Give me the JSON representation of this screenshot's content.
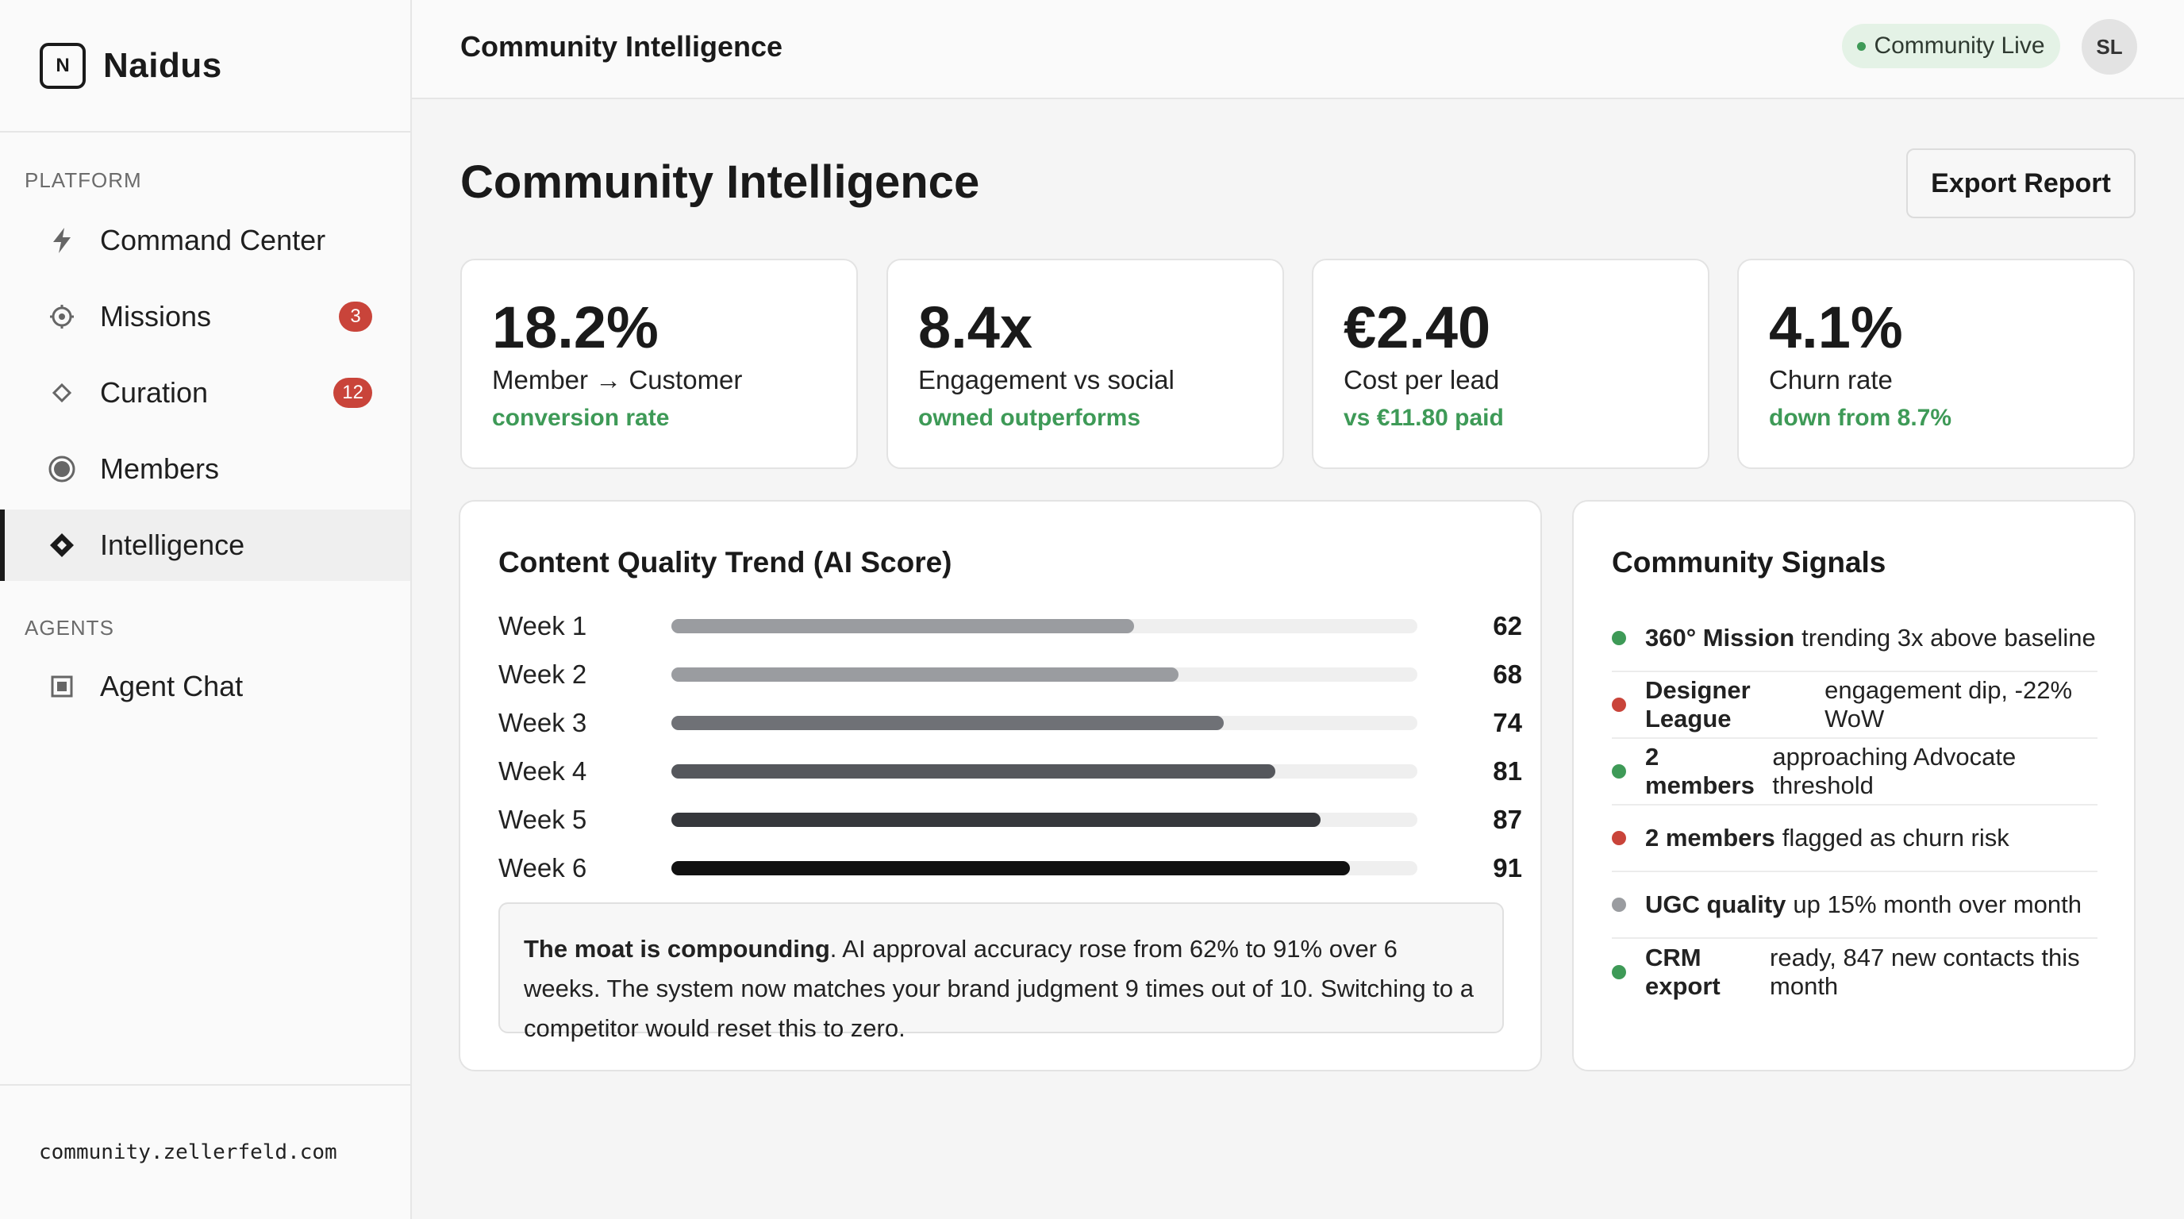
{
  "app": {
    "brand_letter": "N",
    "brand_name": "Naidus"
  },
  "sidebar": {
    "section_platform": "PLATFORM",
    "section_agents": "AGENTS",
    "items": [
      {
        "label": "Command Center",
        "icon": "lightning-icon"
      },
      {
        "label": "Missions",
        "icon": "target-icon",
        "badge": "3"
      },
      {
        "label": "Curation",
        "icon": "diamond-outline-icon",
        "badge": "12"
      },
      {
        "label": "Members",
        "icon": "circle-filled-icon"
      },
      {
        "label": "Intelligence",
        "icon": "diamond-filled-icon",
        "active": true
      }
    ],
    "agent_items": [
      {
        "label": "Agent Chat",
        "icon": "square-chat-icon"
      }
    ],
    "footer_url": "community.zellerfeld.com"
  },
  "topbar": {
    "title": "Community Intelligence",
    "status": "Community Live",
    "avatar_initials": "SL"
  },
  "main": {
    "title": "Community Intelligence",
    "export_label": "Export Report",
    "kpis": [
      {
        "value": "18.2%",
        "label": "Member → Customer",
        "sub": "conversion rate"
      },
      {
        "value": "8.4x",
        "label": "Engagement vs social",
        "sub": "owned outperforms"
      },
      {
        "value": "€2.40",
        "label": "Cost per lead",
        "sub": "vs €11.80 paid"
      },
      {
        "value": "4.1%",
        "label": "Churn rate",
        "sub": "down from 8.7%"
      }
    ],
    "trend": {
      "title": "Content Quality Trend (AI Score)",
      "max": 100,
      "rows": [
        {
          "label": "Week 1",
          "value": 62,
          "color": "#9a9ca0"
        },
        {
          "label": "Week 2",
          "value": 68,
          "color": "#9a9ca0"
        },
        {
          "label": "Week 3",
          "value": 74,
          "color": "#6f7176"
        },
        {
          "label": "Week 4",
          "value": 81,
          "color": "#55575c"
        },
        {
          "label": "Week 5",
          "value": 87,
          "color": "#36383c"
        },
        {
          "label": "Week 6",
          "value": 91,
          "color": "#111111"
        }
      ],
      "insight_bold": "The moat is compounding",
      "insight_text": ". AI approval accuracy rose from 62% to 91% over 6 weeks. The system now matches your brand judgment 9 times out of 10. Switching to a competitor would reset this to zero."
    },
    "signals": {
      "title": "Community Signals",
      "items": [
        {
          "bold": "360° Mission",
          "text": "trending 3x above baseline",
          "color": "#3e9a57"
        },
        {
          "bold": "Designer League",
          "text": "engagement dip, -22% WoW",
          "color": "#c9443a"
        },
        {
          "bold": "2 members",
          "text": "approaching Advocate threshold",
          "color": "#3e9a57"
        },
        {
          "bold": "2 members",
          "text": "flagged as churn risk",
          "color": "#c9443a"
        },
        {
          "bold": "UGC quality",
          "text": "up 15% month over month",
          "color": "#9a9ca0"
        },
        {
          "bold": "CRM export",
          "text": "ready, 847 new contacts this month",
          "color": "#3e9a57"
        }
      ]
    }
  }
}
